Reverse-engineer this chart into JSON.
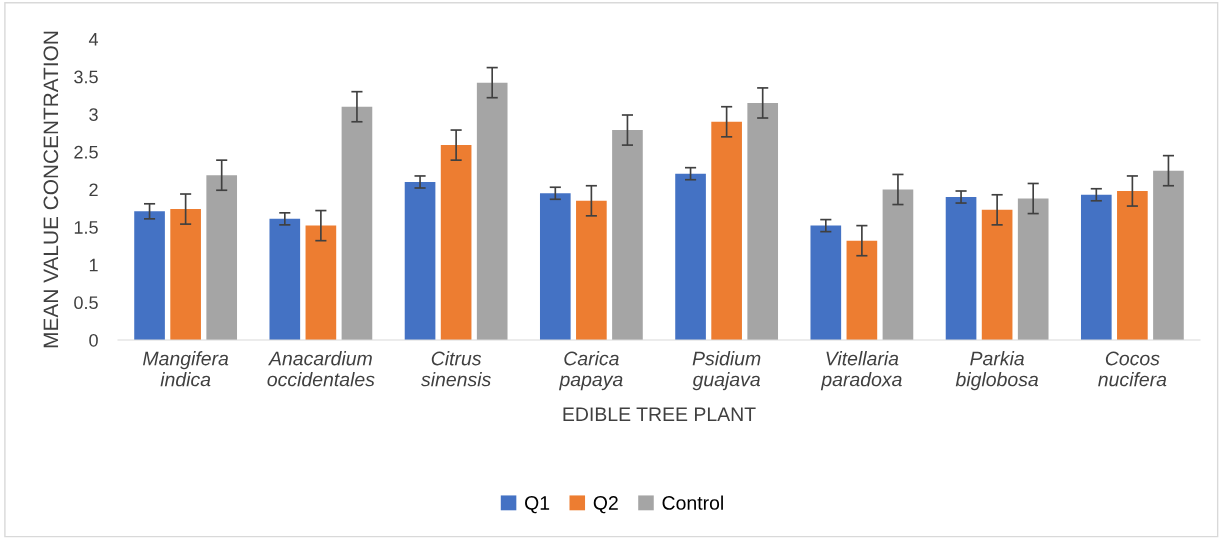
{
  "chart_data": {
    "type": "bar",
    "xlabel": "EDIBLE TREE PLANT",
    "ylabel": "MEAN VALUE CONCENTRATION",
    "categories": [
      "Mangifera\nindica",
      "Anacardium\noccidentales",
      "Citrus\nsinensis",
      "Carica\npapaya",
      "Psidium\nguajava",
      "Vitellaria\nparadoxa",
      "Parkia\nbiglobosa",
      "Cocos\nnucifera"
    ],
    "series": [
      {
        "name": "Q1",
        "color": "#4472c4",
        "values": [
          1.71,
          1.61,
          2.1,
          1.95,
          2.21,
          1.52,
          1.9,
          1.93
        ],
        "errors": [
          0.1,
          0.08,
          0.08,
          0.08,
          0.08,
          0.08,
          0.08,
          0.08
        ]
      },
      {
        "name": "Q2",
        "color": "#ed7d31",
        "values": [
          1.74,
          1.52,
          2.59,
          1.85,
          2.9,
          1.32,
          1.73,
          1.98
        ],
        "errors": [
          0.2,
          0.2,
          0.2,
          0.2,
          0.2,
          0.2,
          0.2,
          0.2
        ]
      },
      {
        "name": "Control",
        "color": "#a5a5a5",
        "values": [
          2.19,
          3.1,
          3.42,
          2.79,
          3.15,
          2.0,
          1.88,
          2.25
        ],
        "errors": [
          0.2,
          0.2,
          0.2,
          0.2,
          0.2,
          0.2,
          0.2,
          0.2
        ]
      }
    ],
    "ylim": [
      0,
      4
    ],
    "yticks": [
      0,
      0.5,
      1,
      1.5,
      2,
      2.5,
      3,
      3.5,
      4
    ],
    "grid": false,
    "legend": "bottom"
  }
}
